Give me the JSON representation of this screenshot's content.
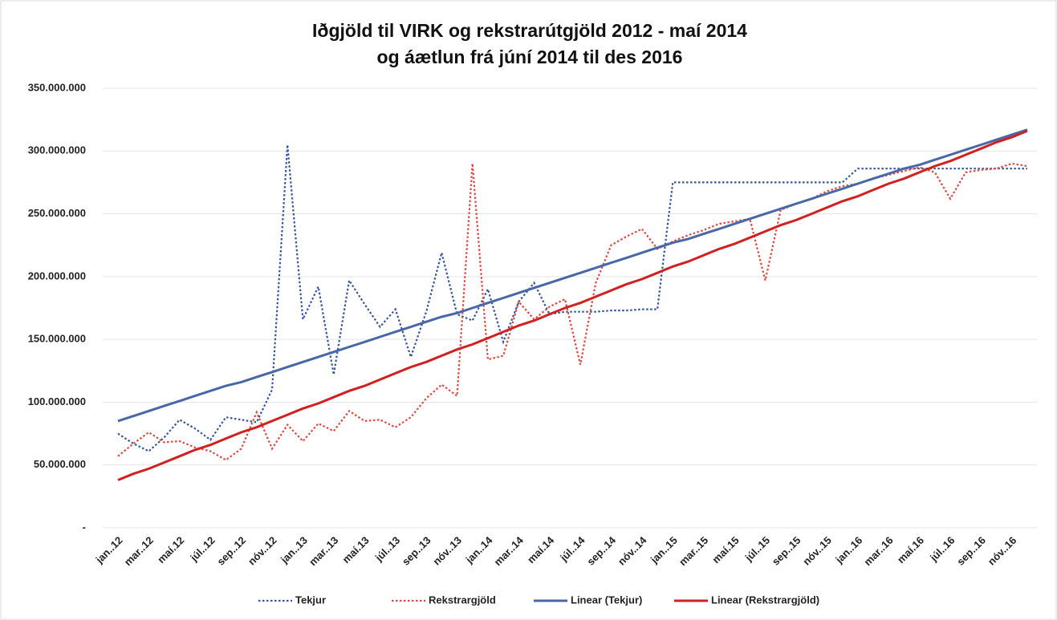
{
  "chart_data": {
    "type": "line",
    "title": "Iðgjöld til VIRK og rekstrarútgjöld 2012 - maí 2014",
    "subtitle": "og áætlun frá júní 2014 til des 2016",
    "categories": [
      "jan..12",
      null,
      "mar..12",
      null,
      "maí.12",
      null,
      "júl..12",
      null,
      "sep..12",
      null,
      "nóv..12",
      null,
      "jan..13",
      null,
      "mar..13",
      null,
      "maí.13",
      null,
      "júl..13",
      null,
      "sep..13",
      null,
      "nóv..13",
      null,
      "jan..14",
      null,
      "mar..14",
      null,
      "maí.14",
      null,
      "júl..14",
      null,
      "sep..14",
      null,
      "nóv..14",
      null,
      "jan..15",
      null,
      "mar..15",
      null,
      "maí.15",
      null,
      "júl..15",
      null,
      "sep..15",
      null,
      "nóv..15",
      null,
      "jan..16",
      null,
      "mar..16",
      null,
      "maí.16",
      null,
      "júl..16",
      null,
      "sep..16",
      null,
      "nóv..16",
      null
    ],
    "series": [
      {
        "name": "Tekjur",
        "color": "#34559f",
        "line_style": "dotted",
        "values": [
          75000000,
          67000000,
          61000000,
          72000000,
          86000000,
          79000000,
          70000000,
          88000000,
          86000000,
          84000000,
          110000000,
          305000000,
          166000000,
          192000000,
          122000000,
          197000000,
          178000000,
          160000000,
          174000000,
          136000000,
          172000000,
          219000000,
          170000000,
          165000000,
          190000000,
          148000000,
          180000000,
          195000000,
          170000000,
          172000000,
          172000000,
          172000000,
          173000000,
          173000000,
          174000000,
          174000000,
          275000000,
          275000000,
          275000000,
          275000000,
          275000000,
          275000000,
          275000000,
          275000000,
          275000000,
          275000000,
          275000000,
          275000000,
          286000000,
          286000000,
          286000000,
          286000000,
          286000000,
          286000000,
          286000000,
          286000000,
          286000000,
          286000000,
          286000000,
          286000000
        ]
      },
      {
        "name": "Rekstrargjöld",
        "color": "#e2473f",
        "line_style": "dotted",
        "values": [
          57000000,
          67000000,
          76000000,
          68000000,
          69000000,
          64000000,
          61000000,
          54000000,
          63000000,
          92000000,
          63000000,
          82000000,
          69000000,
          83000000,
          77000000,
          93000000,
          85000000,
          86000000,
          80000000,
          88000000,
          103000000,
          114000000,
          105000000,
          290000000,
          134000000,
          137000000,
          180000000,
          166000000,
          176000000,
          182000000,
          130000000,
          195000000,
          225000000,
          232000000,
          238000000,
          222000000,
          228000000,
          233000000,
          237000000,
          242000000,
          244000000,
          246000000,
          197000000,
          253000000,
          258000000,
          262000000,
          268000000,
          272000000,
          274000000,
          278000000,
          281000000,
          284000000,
          287000000,
          283000000,
          262000000,
          283000000,
          285000000,
          286000000,
          290000000,
          288000000
        ]
      },
      {
        "name": "Linear (Tekjur)",
        "color": "#4767a6",
        "line_style": "solid",
        "values": [
          85000000,
          89000000,
          93000000,
          97000000,
          101000000,
          105000000,
          109000000,
          113000000,
          116000000,
          120000000,
          124000000,
          128000000,
          132000000,
          136000000,
          140000000,
          144000000,
          148000000,
          152000000,
          156000000,
          160000000,
          164000000,
          168000000,
          171000000,
          175000000,
          179000000,
          183000000,
          187000000,
          191000000,
          195000000,
          199000000,
          203000000,
          207000000,
          211000000,
          215000000,
          219000000,
          223000000,
          227000000,
          230000000,
          234000000,
          238000000,
          242000000,
          246000000,
          250000000,
          254000000,
          258000000,
          262000000,
          266000000,
          270000000,
          274000000,
          278000000,
          282000000,
          286000000,
          289000000,
          293000000,
          297000000,
          301000000,
          305000000,
          309000000,
          313000000,
          317000000
        ]
      },
      {
        "name": "Linear (Rekstrargjöld)",
        "color": "#d21f1f",
        "line_style": "solid",
        "values": [
          38000000,
          43000000,
          47000000,
          52000000,
          57000000,
          62000000,
          66000000,
          71000000,
          76000000,
          80000000,
          85000000,
          90000000,
          95000000,
          99000000,
          104000000,
          109000000,
          113000000,
          118000000,
          123000000,
          128000000,
          132000000,
          137000000,
          142000000,
          146000000,
          151000000,
          156000000,
          161000000,
          165000000,
          170000000,
          175000000,
          179000000,
          184000000,
          189000000,
          194000000,
          198000000,
          203000000,
          208000000,
          212000000,
          217000000,
          222000000,
          226000000,
          231000000,
          236000000,
          241000000,
          245000000,
          250000000,
          255000000,
          260000000,
          264000000,
          269000000,
          274000000,
          278000000,
          283000000,
          288000000,
          292000000,
          297000000,
          302000000,
          307000000,
          311000000,
          316000000
        ]
      }
    ],
    "ylim": [
      0,
      350000000
    ],
    "yticks": [
      {
        "value": 0,
        "label": "-"
      },
      {
        "value": 50000000,
        "label": "50.000.000"
      },
      {
        "value": 100000000,
        "label": "100.000.000"
      },
      {
        "value": 150000000,
        "label": "150.000.000"
      },
      {
        "value": 200000000,
        "label": "200.000.000"
      },
      {
        "value": 250000000,
        "label": "250.000.000"
      },
      {
        "value": 300000000,
        "label": "300.000.000"
      },
      {
        "value": 350000000,
        "label": "350.000.000"
      }
    ],
    "grid": true,
    "legend": "bottom"
  }
}
